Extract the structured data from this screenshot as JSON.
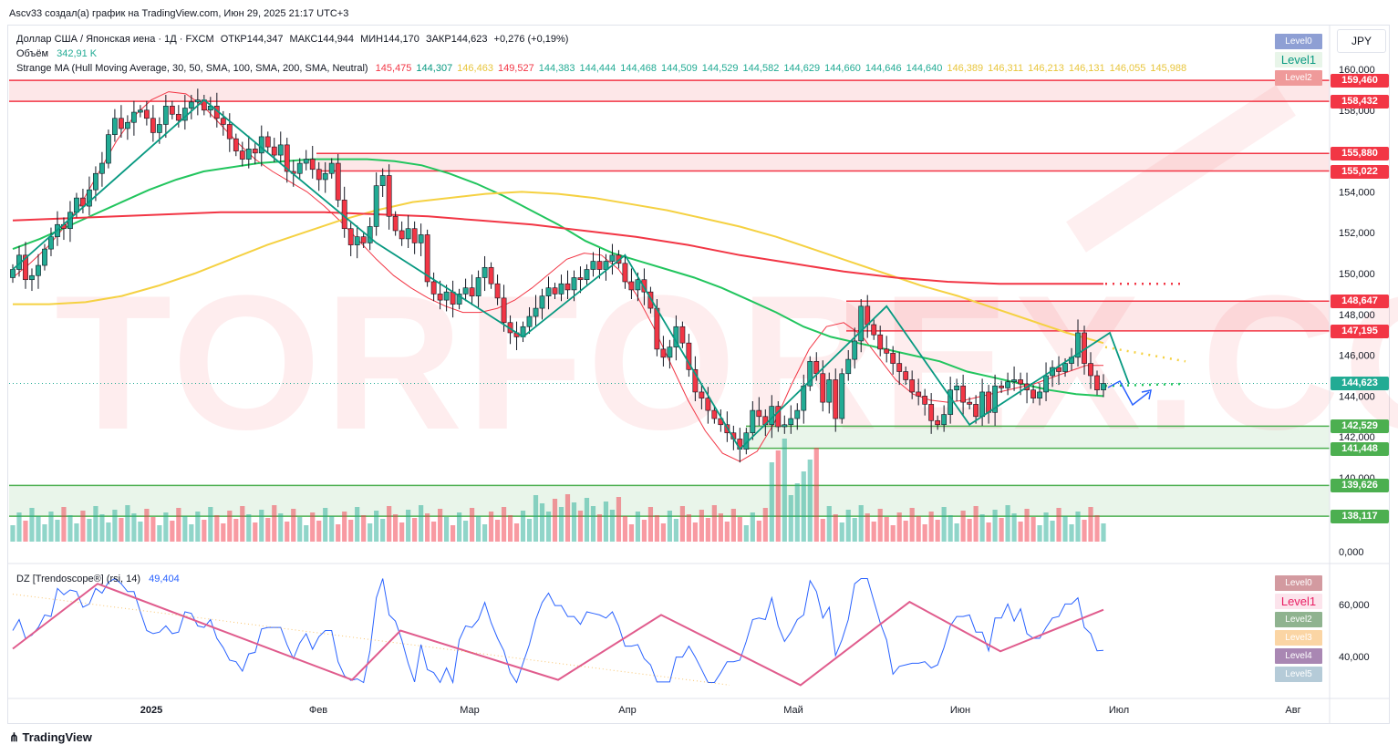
{
  "top_caption": "Ascv33 создал(а) график на TradingView.com, Июн 29, 2025 21:17 UTC+3",
  "header": {
    "symbol_line": "Доллар США / Японская иена · 1Д · FXCM",
    "ohlc": [
      {
        "label": "ОТКР",
        "value": "144,347"
      },
      {
        "label": "МАКС",
        "value": "144,944"
      },
      {
        "label": "МИН",
        "value": "144,170"
      },
      {
        "label": "ЗАКР",
        "value": "144,623"
      }
    ],
    "change": "+0,276 (+0,19%)",
    "volume_label": "Объём",
    "volume_value": "342,91 K",
    "ma_label": "Strange MA (Hull Moving Average, 30, 50, SMA, 100, SMA, 200, SMA, Neutral)",
    "ma_values": [
      {
        "v": "145,475",
        "c": "#f23645"
      },
      {
        "v": "144,307",
        "c": "#089981"
      },
      {
        "v": "146,463",
        "c": "#e8c53c"
      },
      {
        "v": "149,527",
        "c": "#f23645"
      },
      {
        "v": "144,383",
        "c": "#22ab94"
      },
      {
        "v": "144,444",
        "c": "#22ab94"
      },
      {
        "v": "144,468",
        "c": "#22ab94"
      },
      {
        "v": "144,509",
        "c": "#22ab94"
      },
      {
        "v": "144,529",
        "c": "#22ab94"
      },
      {
        "v": "144,582",
        "c": "#22ab94"
      },
      {
        "v": "144,629",
        "c": "#22ab94"
      },
      {
        "v": "144,660",
        "c": "#22ab94"
      },
      {
        "v": "144,646",
        "c": "#22ab94"
      },
      {
        "v": "144,640",
        "c": "#22ab94"
      },
      {
        "v": "146,389",
        "c": "#e8c53c"
      },
      {
        "v": "146,311",
        "c": "#e8c53c"
      },
      {
        "v": "146,213",
        "c": "#e8c53c"
      },
      {
        "v": "146,131",
        "c": "#e8c53c"
      },
      {
        "v": "146,055",
        "c": "#e8c53c"
      },
      {
        "v": "145,988",
        "c": "#e8c53c"
      }
    ],
    "currency_button": "JPY"
  },
  "indicator": {
    "label": "DZ [Trendoscope®] (rsi, 14)",
    "value": "49,404",
    "levels": [
      {
        "label": "Level0",
        "bg": "#d39aa0",
        "fg": "#ffffff"
      },
      {
        "label": "Level1",
        "bg": "#fce4ec",
        "fg": "#e91e63"
      },
      {
        "label": "Level2",
        "bg": "#8fb38f",
        "fg": "#ffffff"
      },
      {
        "label": "Level3",
        "bg": "#fbd5a4",
        "fg": "#ffffff"
      },
      {
        "label": "Level4",
        "bg": "#a987b3",
        "fg": "#ffffff"
      },
      {
        "label": "Level5",
        "bg": "#b5cbd8",
        "fg": "#ffffff"
      }
    ],
    "y_ticks": [
      "60,000",
      "40,000"
    ]
  },
  "main_levels_legend": [
    {
      "label": "Level0",
      "bg": "#8e9fd4",
      "fg": "#ffffff"
    },
    {
      "label": "Level1",
      "bg": "#e8f5e9",
      "fg": "#089981"
    },
    {
      "label": "Level2",
      "bg": "#ef9a9a",
      "fg": "#ffffff"
    }
  ],
  "price_axis": {
    "ticks": [
      "160,000",
      "158,000",
      "154,000",
      "152,000",
      "150,000",
      "148,000",
      "146,000",
      "144,000",
      "142,000",
      "140,000",
      "0,000"
    ],
    "price_labels": [
      {
        "text": "159,460",
        "color": "#f23645",
        "value": 159.46
      },
      {
        "text": "158,432",
        "color": "#f23645",
        "value": 158.432
      },
      {
        "text": "155,880",
        "color": "#f23645",
        "value": 155.88
      },
      {
        "text": "155,022",
        "color": "#f23645",
        "value": 155.022
      },
      {
        "text": "148,647",
        "color": "#f23645",
        "value": 148.647
      },
      {
        "text": "147,195",
        "color": "#f23645",
        "value": 147.195
      },
      {
        "text": "144,623",
        "color": "#22ab94",
        "value": 144.623
      },
      {
        "text": "142,529",
        "color": "#4caf50",
        "value": 142.529
      },
      {
        "text": "141,448",
        "color": "#4caf50",
        "value": 141.448
      },
      {
        "text": "139,626",
        "color": "#4caf50",
        "value": 139.626
      },
      {
        "text": "138,117",
        "color": "#4caf50",
        "value": 138.117
      }
    ]
  },
  "time_axis": [
    "2025",
    "Фев",
    "Мар",
    "Апр",
    "Май",
    "Июн",
    "Июл",
    "Авг"
  ],
  "watermark": "TORFOREX.COM",
  "brand": "TradingView",
  "chart_data": {
    "type": "candlestick",
    "title": "Доллар США / Японская иена · 1Д · FXCM",
    "ylim": [
      138,
      161
    ],
    "x_range": [
      "2024-12-02",
      "2025-08-10"
    ],
    "zones": [
      {
        "from": 158.432,
        "to": 159.46,
        "color": "#f23645"
      },
      {
        "from": 155.022,
        "to": 155.88,
        "color": "#f23645"
      },
      {
        "from": 147.195,
        "to": 148.647,
        "color": "#f23645"
      },
      {
        "from": 141.448,
        "to": 142.529,
        "color": "#4caf50"
      },
      {
        "from": 138.117,
        "to": 139.626,
        "color": "#4caf50"
      }
    ],
    "closes": [
      150.2,
      150.9,
      149.7,
      149.9,
      150.4,
      151.2,
      151.8,
      152.4,
      152.2,
      153.0,
      153.7,
      153.3,
      154.1,
      154.9,
      155.4,
      156.8,
      157.6,
      157.1,
      157.4,
      157.9,
      158.0,
      157.6,
      156.9,
      157.3,
      158.2,
      157.8,
      157.5,
      158.1,
      158.4,
      158.5,
      158.0,
      158.2,
      157.6,
      157.3,
      156.6,
      156.0,
      155.6,
      156.1,
      155.9,
      156.7,
      156.2,
      155.8,
      156.3,
      155.0,
      154.9,
      155.4,
      155.6,
      155.1,
      154.6,
      154.9,
      155.4,
      153.6,
      152.2,
      151.4,
      151.8,
      151.5,
      152.3,
      154.3,
      154.8,
      152.8,
      152.1,
      151.7,
      152.2,
      151.5,
      151.9,
      149.6,
      149.0,
      148.7,
      149.1,
      148.5,
      149.0,
      149.3,
      148.9,
      149.8,
      150.3,
      149.5,
      148.8,
      147.6,
      147.1,
      146.9,
      147.4,
      147.9,
      148.3,
      148.9,
      149.3,
      149.0,
      149.5,
      149.2,
      149.8,
      149.7,
      150.2,
      150.6,
      150.2,
      150.6,
      150.9,
      150.5,
      149.6,
      149.2,
      149.7,
      149.1,
      148.3,
      146.3,
      145.9,
      146.4,
      147.4,
      146.6,
      145.3,
      144.2,
      143.9,
      143.3,
      142.9,
      142.6,
      142.2,
      141.9,
      141.4,
      142.2,
      143.3,
      143.0,
      142.6,
      143.5,
      142.5,
      142.6,
      142.9,
      143.3,
      144.5,
      145.7,
      145.1,
      143.7,
      144.8,
      142.9,
      145.1,
      145.8,
      146.7,
      148.4,
      147.5,
      147.0,
      146.3,
      146.1,
      145.6,
      145.2,
      144.8,
      144.2,
      144.0,
      143.6,
      142.8,
      142.6,
      143.1,
      144.3,
      144.5,
      143.7,
      143.6,
      143.0,
      144.2,
      143.2,
      144.5,
      144.4,
      144.7,
      144.8,
      144.6,
      144.3,
      143.9,
      144.2,
      145.0,
      145.4,
      145.2,
      145.6,
      145.9,
      147.1,
      145.6,
      145.0,
      144.3,
      144.623
    ],
    "series": [
      {
        "name": "Hull MA 30",
        "color": "#f23645",
        "values": [
          149.8,
          150.5,
          151.3,
          152.3,
          153.5,
          155.0,
          156.5,
          157.7,
          158.5,
          158.9,
          158.8,
          158.2,
          157.3,
          156.4,
          155.6,
          155.0,
          154.5,
          154.0,
          153.3,
          152.5,
          151.6,
          150.7,
          149.9,
          149.3,
          148.8,
          148.4,
          148.1,
          148.1,
          148.3,
          148.7,
          149.3,
          150.0,
          150.7,
          151.0,
          150.9,
          150.2,
          149.0,
          147.4,
          145.6,
          143.8,
          142.3,
          141.2,
          140.8,
          141.3,
          142.7,
          144.6,
          146.3,
          147.4,
          147.6,
          147.0,
          145.9,
          144.8,
          144.1,
          143.8,
          143.7,
          143.8,
          144.0,
          144.2,
          144.4,
          144.6,
          144.9,
          145.2,
          145.5,
          145.5
        ]
      },
      {
        "name": "SMA 50",
        "color": "#22c55e",
        "values": [
          151.2,
          151.7,
          152.3,
          152.9,
          153.5,
          154.1,
          154.6,
          155.0,
          155.2,
          155.4,
          155.5,
          155.6,
          155.6,
          155.6,
          155.5,
          155.3,
          154.9,
          154.4,
          153.8,
          153.1,
          152.4,
          151.6,
          151.0,
          150.6,
          150.2,
          149.8,
          149.3,
          148.7,
          148.1,
          147.4,
          146.9,
          146.6,
          146.3,
          146.0,
          145.7,
          145.2,
          144.9,
          144.6,
          144.3,
          144.1,
          144.0
        ]
      },
      {
        "name": "SMA 100",
        "color": "#f5d142",
        "values": [
          148.5,
          148.5,
          148.6,
          148.9,
          149.4,
          150.0,
          150.7,
          151.4,
          152.0,
          152.6,
          153.1,
          153.5,
          153.7,
          153.9,
          154.0,
          153.9,
          153.7,
          153.4,
          153.1,
          152.7,
          152.3,
          151.8,
          151.2,
          150.6,
          150.0,
          149.4,
          148.9,
          148.3,
          147.7,
          147.1,
          146.6
        ]
      },
      {
        "name": "SMA 200",
        "color": "#f23645",
        "values": [
          152.6,
          152.7,
          152.8,
          152.9,
          153.0,
          153.0,
          153.0,
          152.9,
          152.8,
          152.6,
          152.4,
          152.1,
          151.8,
          151.4,
          150.9,
          150.5,
          150.1,
          149.8,
          149.6,
          149.5,
          149.5,
          149.5
        ]
      }
    ]
  }
}
